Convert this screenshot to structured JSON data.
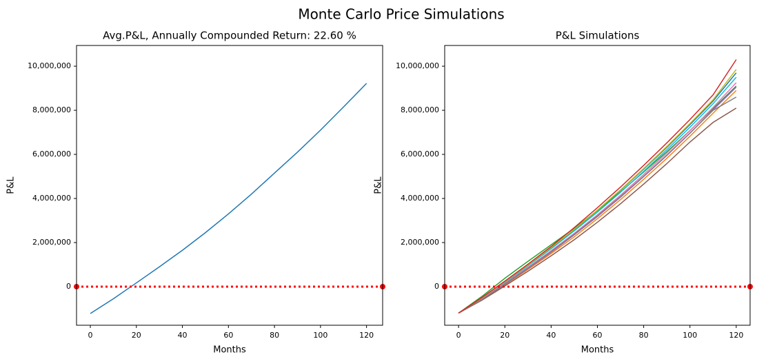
{
  "title": "Monte Carlo Price Simulations",
  "chart_data": [
    {
      "type": "line",
      "title": "Avg.P&L, Annually Compounded Return: 22.60 %",
      "xlabel": "Months",
      "ylabel": "P&L",
      "x": [
        0,
        10,
        20,
        30,
        40,
        50,
        60,
        70,
        80,
        90,
        100,
        110,
        120
      ],
      "series": [
        {
          "color": "#1f77b4",
          "values": [
            -1220000,
            -550000,
            170000,
            900000,
            1650000,
            2450000,
            3300000,
            4200000,
            5150000,
            6100000,
            7100000,
            8150000,
            9220000
          ]
        }
      ],
      "reference_line": {
        "y": 0,
        "color": "#ff0000"
      },
      "xlim": [
        -6,
        127
      ],
      "ylim": [
        -1750000,
        10940000
      ],
      "xticks": [
        0,
        20,
        40,
        60,
        80,
        100,
        120
      ],
      "yticks": [
        0,
        {
          "value": 2000000,
          "label": "2,000,000"
        },
        {
          "value": 4000000,
          "label": "4,000,000"
        },
        {
          "value": 6000000,
          "label": "6,000,000"
        },
        {
          "value": 8000000,
          "label": "8,000,000"
        },
        {
          "value": 10000000,
          "label": "10,000,000"
        }
      ]
    },
    {
      "type": "line",
      "title": "P&L Simulations",
      "xlabel": "Months",
      "ylabel": "P&L",
      "x": [
        0,
        10,
        20,
        30,
        40,
        50,
        60,
        70,
        80,
        90,
        100,
        110,
        120
      ],
      "series": [
        {
          "color": "#1f77b4",
          "values": [
            -1200000,
            -520000,
            220000,
            980000,
            1760000,
            2580000,
            3450000,
            4370000,
            5330000,
            6320000,
            7350000,
            8420000,
            9700000
          ]
        },
        {
          "color": "#ff7f0e",
          "values": [
            -1200000,
            -600000,
            80000,
            780000,
            1500000,
            2260000,
            3080000,
            3950000,
            4870000,
            5820000,
            6820000,
            7870000,
            8900000
          ]
        },
        {
          "color": "#2ca02c",
          "values": [
            -1200000,
            -450000,
            380000,
            1150000,
            1900000,
            2650000,
            3450000,
            4300000,
            5200000,
            6120000,
            7080000,
            8080000,
            9100000
          ]
        },
        {
          "color": "#9467bd",
          "values": [
            -1200000,
            -580000,
            100000,
            820000,
            1560000,
            2350000,
            3180000,
            4060000,
            4990000,
            5950000,
            6960000,
            8020000,
            9050000
          ]
        },
        {
          "color": "#8c564b",
          "values": [
            -1200000,
            -620000,
            30000,
            700000,
            1400000,
            2130000,
            2920000,
            3760000,
            4650000,
            5580000,
            6560000,
            7450000,
            8100000
          ]
        },
        {
          "color": "#17becf",
          "values": [
            -1200000,
            -540000,
            190000,
            950000,
            1720000,
            2530000,
            3380000,
            4280000,
            5230000,
            6210000,
            7230000,
            8300000,
            9500000
          ]
        },
        {
          "color": "#e377c2",
          "values": [
            -1200000,
            -560000,
            150000,
            880000,
            1630000,
            2420000,
            3260000,
            4150000,
            5090000,
            6060000,
            7070000,
            8130000,
            9250000
          ]
        },
        {
          "color": "#bcbd22",
          "values": [
            -1200000,
            -510000,
            230000,
            990000,
            1780000,
            2600000,
            3470000,
            4390000,
            5360000,
            6360000,
            7400000,
            8480000,
            9850000
          ]
        },
        {
          "color": "#7f7f7f",
          "values": [
            -1200000,
            -590000,
            120000,
            840000,
            1590000,
            2380000,
            3210000,
            4090000,
            5010000,
            5970000,
            6970000,
            8000000,
            8600000
          ]
        },
        {
          "color": "#d62728",
          "values": [
            -1200000,
            -500000,
            250000,
            1020000,
            1820000,
            2680000,
            3580000,
            4520000,
            5500000,
            6520000,
            7580000,
            8700000,
            10300000
          ]
        }
      ],
      "reference_line": {
        "y": 0,
        "color": "#ff0000"
      },
      "xlim": [
        -6,
        126
      ],
      "ylim": [
        -1750000,
        10940000
      ],
      "xticks": [
        0,
        20,
        40,
        60,
        80,
        100,
        120
      ],
      "yticks": [
        0,
        {
          "value": 2000000,
          "label": "2,000,000"
        },
        {
          "value": 4000000,
          "label": "4,000,000"
        },
        {
          "value": 6000000,
          "label": "6,000,000"
        },
        {
          "value": 8000000,
          "label": "8,000,000"
        },
        {
          "value": 10000000,
          "label": "10,000,000"
        }
      ]
    }
  ]
}
